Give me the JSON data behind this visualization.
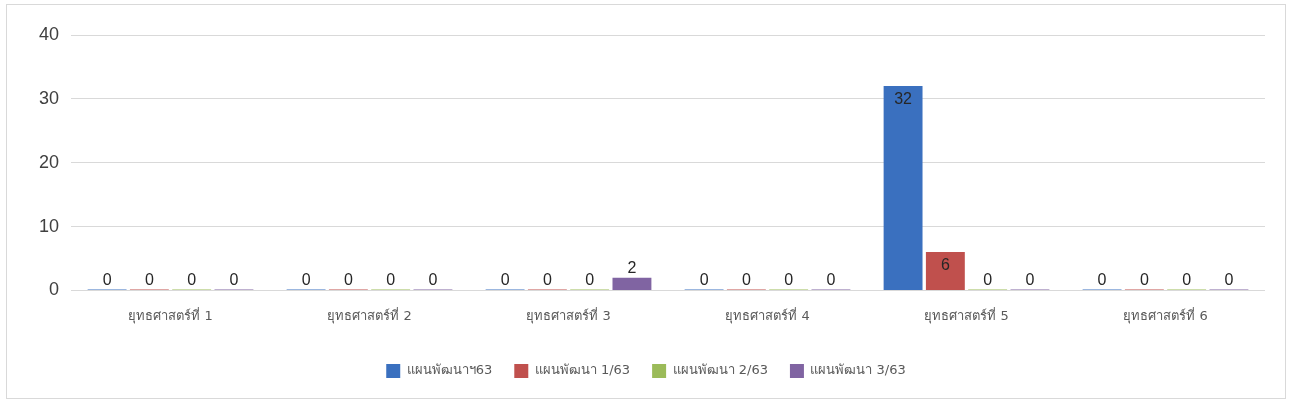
{
  "chart_data": {
    "type": "bar",
    "categories": [
      "ยุทธศาสตร์ที่ 1",
      "ยุทธศาสตร์ที่ 2",
      "ยุทธศาสตร์ที่ 3",
      "ยุทธศาสตร์ที่ 4",
      "ยุทธศาสตร์ที่ 5",
      "ยุทธศาสตร์ที่ 6"
    ],
    "series": [
      {
        "name": "แผนพัฒนาฯ63",
        "color": "#3a70bf",
        "values": [
          0,
          0,
          0,
          0,
          32,
          0
        ]
      },
      {
        "name": "แผนพัฒนา 1/63",
        "color": "#c0504d",
        "values": [
          0,
          0,
          0,
          0,
          6,
          0
        ]
      },
      {
        "name": "แผนพัฒนา 2/63",
        "color": "#9bbb59",
        "values": [
          0,
          0,
          0,
          0,
          0,
          0
        ]
      },
      {
        "name": "แผนพัฒนา 3/63",
        "color": "#8064a2",
        "values": [
          0,
          0,
          2,
          0,
          0,
          0
        ]
      }
    ],
    "ylim": [
      0,
      40
    ],
    "yticks": [
      0,
      10,
      20,
      30,
      40
    ],
    "grid": "y",
    "legend": "bottom",
    "data_labels": true
  }
}
